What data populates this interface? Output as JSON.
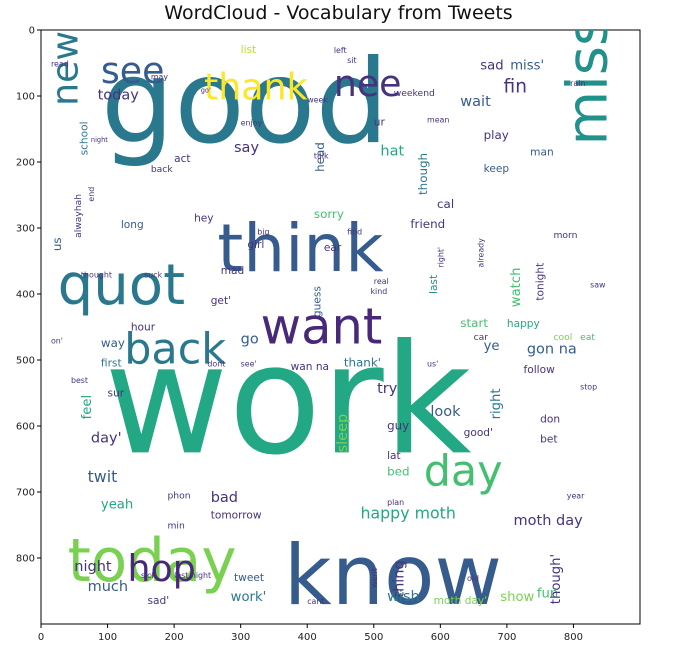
{
  "chart_data": {
    "type": "wordcloud",
    "title": "WordCloud - Vocabulary from Tweets",
    "xlim": [
      0,
      900
    ],
    "ylim": [
      0,
      900
    ],
    "x_ticks": [
      "0",
      "100",
      "200",
      "300",
      "400",
      "500",
      "600",
      "700",
      "800"
    ],
    "y_ticks": [
      "0",
      "100",
      "200",
      "300",
      "400",
      "500",
      "600",
      "700",
      "800"
    ],
    "colors": {
      "dark_purple": "#46337e",
      "purple": "#482878",
      "blue": "#365c8d",
      "teal_blue": "#2a788e",
      "teal": "#21918c",
      "green_teal": "#22a884",
      "green": "#44bf70",
      "light_green": "#7ad151",
      "yellow_green": "#bddf26",
      "yellow": "#fde725"
    },
    "words": [
      {
        "text": "good",
        "x": 90,
        "y": 170,
        "size": 175,
        "color": "#2a788e",
        "rotate": 0
      },
      {
        "text": "work",
        "x": 95,
        "y": 640,
        "size": 230,
        "color": "#22a884",
        "rotate": 0
      },
      {
        "text": "think",
        "x": 265,
        "y": 365,
        "size": 100,
        "color": "#365c8d",
        "rotate": 0
      },
      {
        "text": "know",
        "x": 365,
        "y": 870,
        "size": 125,
        "color": "#365c8d",
        "rotate": 0
      },
      {
        "text": "today",
        "x": 40,
        "y": 835,
        "size": 90,
        "color": "#7ad151",
        "rotate": 0
      },
      {
        "text": "quot",
        "x": 25,
        "y": 415,
        "size": 85,
        "color": "#2a788e",
        "rotate": 0
      },
      {
        "text": "want",
        "x": 330,
        "y": 475,
        "size": 75,
        "color": "#482878",
        "rotate": 0
      },
      {
        "text": "back",
        "x": 125,
        "y": 505,
        "size": 65,
        "color": "#2a788e",
        "rotate": 0
      },
      {
        "text": "miss",
        "x": 850,
        "y": 175,
        "size": 85,
        "color": "#21918c",
        "rotate": -90
      },
      {
        "text": "thank",
        "x": 245,
        "y": 105,
        "size": 55,
        "color": "#fde725",
        "rotate": 0
      },
      {
        "text": "nee",
        "x": 440,
        "y": 100,
        "size": 55,
        "color": "#46337e",
        "rotate": 0
      },
      {
        "text": "see",
        "x": 90,
        "y": 80,
        "size": 55,
        "color": "#365c8d",
        "rotate": 0
      },
      {
        "text": "new",
        "x": 55,
        "y": 115,
        "size": 55,
        "color": "#2a788e",
        "rotate": -90
      },
      {
        "text": "day",
        "x": 575,
        "y": 690,
        "size": 65,
        "color": "#44bf70",
        "rotate": 0
      },
      {
        "text": "hop",
        "x": 130,
        "y": 835,
        "size": 55,
        "color": "#482878",
        "rotate": 0
      },
      {
        "text": "fin",
        "x": 695,
        "y": 95,
        "size": 28,
        "color": "#46337e",
        "rotate": 0
      },
      {
        "text": "sad",
        "x": 660,
        "y": 60,
        "size": 20,
        "color": "#46337e",
        "rotate": 0
      },
      {
        "text": "miss'",
        "x": 705,
        "y": 60,
        "size": 20,
        "color": "#365c8d",
        "rotate": 0
      },
      {
        "text": "today",
        "x": 85,
        "y": 105,
        "size": 22,
        "color": "#46337e",
        "rotate": 0
      },
      {
        "text": "wait",
        "x": 630,
        "y": 115,
        "size": 22,
        "color": "#365c8d",
        "rotate": 0
      },
      {
        "text": "weekend",
        "x": 530,
        "y": 100,
        "size": 14,
        "color": "#46337e",
        "rotate": 0
      },
      {
        "text": "school",
        "x": 70,
        "y": 190,
        "size": 16,
        "color": "#2a788e",
        "rotate": -90
      },
      {
        "text": "alwayhah",
        "x": 60,
        "y": 315,
        "size": 14,
        "color": "#46337e",
        "rotate": -90
      },
      {
        "text": "act",
        "x": 200,
        "y": 200,
        "size": 16,
        "color": "#46337e",
        "rotate": 0
      },
      {
        "text": "say",
        "x": 290,
        "y": 185,
        "size": 22,
        "color": "#46337e",
        "rotate": 0
      },
      {
        "text": "head",
        "x": 425,
        "y": 215,
        "size": 18,
        "color": "#365c8d",
        "rotate": -90
      },
      {
        "text": "hat",
        "x": 510,
        "y": 190,
        "size": 22,
        "color": "#22a884",
        "rotate": 0
      },
      {
        "text": "though",
        "x": 580,
        "y": 250,
        "size": 18,
        "color": "#2a788e",
        "rotate": -90
      },
      {
        "text": "play",
        "x": 665,
        "y": 165,
        "size": 18,
        "color": "#46337e",
        "rotate": 0
      },
      {
        "text": "man",
        "x": 735,
        "y": 190,
        "size": 16,
        "color": "#365c8d",
        "rotate": 0
      },
      {
        "text": "keep",
        "x": 665,
        "y": 215,
        "size": 16,
        "color": "#365c8d",
        "rotate": 0
      },
      {
        "text": "cal",
        "x": 595,
        "y": 270,
        "size": 18,
        "color": "#46337e",
        "rotate": 0
      },
      {
        "text": "friend",
        "x": 555,
        "y": 300,
        "size": 18,
        "color": "#46337e",
        "rotate": 0
      },
      {
        "text": "sorry",
        "x": 410,
        "y": 285,
        "size": 18,
        "color": "#44bf70",
        "rotate": 0
      },
      {
        "text": "back",
        "x": 165,
        "y": 215,
        "size": 14,
        "color": "#46337e",
        "rotate": 0
      },
      {
        "text": "hey",
        "x": 230,
        "y": 290,
        "size": 16,
        "color": "#46337e",
        "rotate": 0
      },
      {
        "text": "long",
        "x": 120,
        "y": 300,
        "size": 16,
        "color": "#365c8d",
        "rotate": 0
      },
      {
        "text": "girl",
        "x": 310,
        "y": 330,
        "size": 16,
        "color": "#46337e",
        "rotate": 0
      },
      {
        "text": "ear",
        "x": 425,
        "y": 335,
        "size": 16,
        "color": "#46337e",
        "rotate": 0
      },
      {
        "text": "mad",
        "x": 270,
        "y": 370,
        "size": 16,
        "color": "#46337e",
        "rotate": 0
      },
      {
        "text": "guess",
        "x": 420,
        "y": 435,
        "size": 16,
        "color": "#365c8d",
        "rotate": -90
      },
      {
        "text": "watch",
        "x": 720,
        "y": 420,
        "size": 20,
        "color": "#44bf70",
        "rotate": -90
      },
      {
        "text": "tonight",
        "x": 755,
        "y": 410,
        "size": 16,
        "color": "#46337e",
        "rotate": -90
      },
      {
        "text": "morn",
        "x": 770,
        "y": 315,
        "size": 14,
        "color": "#46337e",
        "rotate": 0
      },
      {
        "text": "start",
        "x": 630,
        "y": 450,
        "size": 18,
        "color": "#44bf70",
        "rotate": 0
      },
      {
        "text": "happy",
        "x": 700,
        "y": 450,
        "size": 16,
        "color": "#22a884",
        "rotate": 0
      },
      {
        "text": "ye",
        "x": 665,
        "y": 485,
        "size": 20,
        "color": "#365c8d",
        "rotate": 0
      },
      {
        "text": "gon na",
        "x": 730,
        "y": 490,
        "size": 22,
        "color": "#365c8d",
        "rotate": 0
      },
      {
        "text": "car",
        "x": 650,
        "y": 470,
        "size": 14,
        "color": "#46337e",
        "rotate": 0
      },
      {
        "text": "cool",
        "x": 770,
        "y": 470,
        "size": 14,
        "color": "#7ad151",
        "rotate": 0
      },
      {
        "text": "eat",
        "x": 810,
        "y": 470,
        "size": 14,
        "color": "#44bf70",
        "rotate": 0
      },
      {
        "text": "follow",
        "x": 725,
        "y": 520,
        "size": 16,
        "color": "#46337e",
        "rotate": 0
      },
      {
        "text": "way",
        "x": 90,
        "y": 480,
        "size": 18,
        "color": "#365c8d",
        "rotate": 0
      },
      {
        "text": "hour",
        "x": 135,
        "y": 455,
        "size": 16,
        "color": "#46337e",
        "rotate": 0
      },
      {
        "text": "first",
        "x": 90,
        "y": 510,
        "size": 16,
        "color": "#2a788e",
        "rotate": 0
      },
      {
        "text": "go",
        "x": 300,
        "y": 475,
        "size": 22,
        "color": "#365c8d",
        "rotate": 0
      },
      {
        "text": "thank'",
        "x": 455,
        "y": 510,
        "size": 18,
        "color": "#2a788e",
        "rotate": 0
      },
      {
        "text": "try",
        "x": 505,
        "y": 550,
        "size": 22,
        "color": "#46337e",
        "rotate": 0
      },
      {
        "text": "right",
        "x": 690,
        "y": 590,
        "size": 20,
        "color": "#2a788e",
        "rotate": -90
      },
      {
        "text": "look",
        "x": 585,
        "y": 585,
        "size": 22,
        "color": "#365c8d",
        "rotate": 0
      },
      {
        "text": "sleep",
        "x": 460,
        "y": 640,
        "size": 22,
        "color": "#7ad151",
        "rotate": -90
      },
      {
        "text": "guy",
        "x": 520,
        "y": 605,
        "size": 18,
        "color": "#46337e",
        "rotate": 0
      },
      {
        "text": "good'",
        "x": 635,
        "y": 615,
        "size": 16,
        "color": "#46337e",
        "rotate": 0
      },
      {
        "text": "don",
        "x": 750,
        "y": 595,
        "size": 16,
        "color": "#46337e",
        "rotate": 0
      },
      {
        "text": "bet",
        "x": 750,
        "y": 625,
        "size": 16,
        "color": "#46337e",
        "rotate": 0
      },
      {
        "text": "lat",
        "x": 520,
        "y": 650,
        "size": 16,
        "color": "#46337e",
        "rotate": 0
      },
      {
        "text": "bed",
        "x": 520,
        "y": 675,
        "size": 18,
        "color": "#44bf70",
        "rotate": 0
      },
      {
        "text": "feel",
        "x": 75,
        "y": 590,
        "size": 20,
        "color": "#22a884",
        "rotate": -90
      },
      {
        "text": "sur",
        "x": 100,
        "y": 555,
        "size": 16,
        "color": "#46337e",
        "rotate": 0
      },
      {
        "text": "day'",
        "x": 75,
        "y": 625,
        "size": 22,
        "color": "#46337e",
        "rotate": 0
      },
      {
        "text": "twit",
        "x": 70,
        "y": 685,
        "size": 24,
        "color": "#365c8d",
        "rotate": 0
      },
      {
        "text": "yeah",
        "x": 90,
        "y": 725,
        "size": 20,
        "color": "#22a884",
        "rotate": 0
      },
      {
        "text": "bad",
        "x": 255,
        "y": 715,
        "size": 22,
        "color": "#46337e",
        "rotate": 0
      },
      {
        "text": "happy moth",
        "x": 480,
        "y": 740,
        "size": 24,
        "color": "#22a884",
        "rotate": 0
      },
      {
        "text": "moth day",
        "x": 710,
        "y": 750,
        "size": 22,
        "color": "#46337e",
        "rotate": 0
      },
      {
        "text": "tomorrow",
        "x": 255,
        "y": 740,
        "size": 16,
        "color": "#46337e",
        "rotate": 0
      },
      {
        "text": "min",
        "x": 190,
        "y": 755,
        "size": 14,
        "color": "#46337e",
        "rotate": 0
      },
      {
        "text": "night",
        "x": 50,
        "y": 820,
        "size": 22,
        "color": "#46337e",
        "rotate": 0
      },
      {
        "text": "much",
        "x": 70,
        "y": 850,
        "size": 22,
        "color": "#365c8d",
        "rotate": 0
      },
      {
        "text": "thing",
        "x": 545,
        "y": 860,
        "size": 22,
        "color": "#46337e",
        "rotate": -90
      },
      {
        "text": "wish",
        "x": 520,
        "y": 865,
        "size": 22,
        "color": "#2a788e",
        "rotate": 0
      },
      {
        "text": "work'",
        "x": 285,
        "y": 865,
        "size": 20,
        "color": "#2a788e",
        "rotate": 0
      },
      {
        "text": "tweet",
        "x": 290,
        "y": 835,
        "size": 16,
        "color": "#365c8d",
        "rotate": 0
      },
      {
        "text": "show",
        "x": 690,
        "y": 865,
        "size": 20,
        "color": "#7ad151",
        "rotate": 0
      },
      {
        "text": "fun",
        "x": 745,
        "y": 860,
        "size": 20,
        "color": "#44bf70",
        "rotate": 0
      },
      {
        "text": "though'",
        "x": 780,
        "y": 870,
        "size": 20,
        "color": "#46337e",
        "rotate": -90
      },
      {
        "text": "sad'",
        "x": 160,
        "y": 870,
        "size": 16,
        "color": "#46337e",
        "rotate": 0
      },
      {
        "text": "moth day'",
        "x": 590,
        "y": 870,
        "size": 16,
        "color": "#7ad151",
        "rotate": 0
      },
      {
        "text": "list",
        "x": 300,
        "y": 35,
        "size": 16,
        "color": "#bddf26",
        "rotate": 0
      },
      {
        "text": "left",
        "x": 440,
        "y": 35,
        "size": 12,
        "color": "#46337e",
        "rotate": 0
      },
      {
        "text": "week",
        "x": 400,
        "y": 110,
        "size": 12,
        "color": "#46337e",
        "rotate": 0
      },
      {
        "text": "ur",
        "x": 500,
        "y": 145,
        "size": 16,
        "color": "#46337e",
        "rotate": 0
      },
      {
        "text": "talk",
        "x": 410,
        "y": 195,
        "size": 12,
        "color": "#46337e",
        "rotate": 0
      },
      {
        "text": "rain",
        "x": 795,
        "y": 85,
        "size": 12,
        "color": "#46337e",
        "rotate": 0
      },
      {
        "text": "read",
        "x": 15,
        "y": 55,
        "size": 12,
        "color": "#46337e",
        "rotate": 0
      },
      {
        "text": "sit",
        "x": 460,
        "y": 50,
        "size": 12,
        "color": "#46337e",
        "rotate": 0
      },
      {
        "text": "mean",
        "x": 580,
        "y": 140,
        "size": 12,
        "color": "#46337e",
        "rotate": 0
      },
      {
        "text": "enjoy",
        "x": 300,
        "y": 145,
        "size": 12,
        "color": "#46337e",
        "rotate": 0
      },
      {
        "text": "already",
        "x": 665,
        "y": 360,
        "size": 12,
        "color": "#46337e",
        "rotate": -90
      },
      {
        "text": "last",
        "x": 595,
        "y": 400,
        "size": 16,
        "color": "#21918c",
        "rotate": -90
      },
      {
        "text": "right'",
        "x": 605,
        "y": 360,
        "size": 12,
        "color": "#46337e",
        "rotate": -90
      },
      {
        "text": "find",
        "x": 460,
        "y": 310,
        "size": 12,
        "color": "#46337e",
        "rotate": 0
      },
      {
        "text": "real",
        "x": 500,
        "y": 385,
        "size": 12,
        "color": "#46337e",
        "rotate": 0
      },
      {
        "text": "kind",
        "x": 495,
        "y": 400,
        "size": 12,
        "color": "#46337e",
        "rotate": 0
      },
      {
        "text": "big",
        "x": 325,
        "y": 310,
        "size": 12,
        "color": "#46337e",
        "rotate": 0
      },
      {
        "text": "get'",
        "x": 255,
        "y": 415,
        "size": 16,
        "color": "#46337e",
        "rotate": 0
      },
      {
        "text": "thought",
        "x": 60,
        "y": 375,
        "size": 12,
        "color": "#46337e",
        "rotate": 0
      },
      {
        "text": "suck",
        "x": 155,
        "y": 375,
        "size": 12,
        "color": "#46337e",
        "rotate": 0
      },
      {
        "text": "us",
        "x": 30,
        "y": 335,
        "size": 18,
        "color": "#365c8d",
        "rotate": -90
      },
      {
        "text": "saw",
        "x": 825,
        "y": 390,
        "size": 12,
        "color": "#46337e",
        "rotate": 0
      },
      {
        "text": "stop",
        "x": 810,
        "y": 545,
        "size": 12,
        "color": "#46337e",
        "rotate": 0
      },
      {
        "text": "wan na",
        "x": 375,
        "y": 515,
        "size": 16,
        "color": "#46337e",
        "rotate": 0
      },
      {
        "text": "dont",
        "x": 250,
        "y": 510,
        "size": 12,
        "color": "#46337e",
        "rotate": 0
      },
      {
        "text": "see'",
        "x": 300,
        "y": 510,
        "size": 12,
        "color": "#46337e",
        "rotate": 0
      },
      {
        "text": "best",
        "x": 45,
        "y": 535,
        "size": 12,
        "color": "#46337e",
        "rotate": 0
      },
      {
        "text": "phon",
        "x": 190,
        "y": 710,
        "size": 14,
        "color": "#46337e",
        "rotate": 0
      },
      {
        "text": "year",
        "x": 790,
        "y": 710,
        "size": 12,
        "color": "#46337e",
        "rotate": 0
      },
      {
        "text": "plan",
        "x": 520,
        "y": 720,
        "size": 12,
        "color": "#46337e",
        "rotate": 0
      },
      {
        "text": "old",
        "x": 640,
        "y": 835,
        "size": 12,
        "color": "#46337e",
        "rotate": 0
      },
      {
        "text": "went",
        "x": 505,
        "y": 845,
        "size": 12,
        "color": "#46337e",
        "rotate": -90
      },
      {
        "text": "sick",
        "x": 150,
        "y": 830,
        "size": 12,
        "color": "#46337e",
        "rotate": 0
      },
      {
        "text": "lost night",
        "x": 200,
        "y": 830,
        "size": 12,
        "color": "#46337e",
        "rotate": 0
      },
      {
        "text": "cant",
        "x": 400,
        "y": 870,
        "size": 12,
        "color": "#46337e",
        "rotate": 0
      },
      {
        "text": "us'",
        "x": 580,
        "y": 510,
        "size": 12,
        "color": "#46337e",
        "rotate": 0
      },
      {
        "text": "on'",
        "x": 15,
        "y": 475,
        "size": 12,
        "color": "#46337e",
        "rotate": 0
      },
      {
        "text": "end",
        "x": 80,
        "y": 260,
        "size": 12,
        "color": "#46337e",
        "rotate": -90
      },
      {
        "text": "night",
        "x": 75,
        "y": 170,
        "size": 10,
        "color": "#46337e",
        "rotate": 0
      },
      {
        "text": "may",
        "x": 165,
        "y": 75,
        "size": 12,
        "color": "#46337e",
        "rotate": 0
      },
      {
        "text": "go'",
        "x": 240,
        "y": 95,
        "size": 10,
        "color": "#46337e",
        "rotate": 0
      }
    ]
  }
}
